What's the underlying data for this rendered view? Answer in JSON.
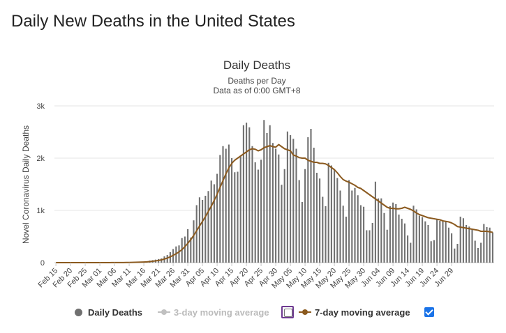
{
  "page": {
    "heading": "Daily New Deaths in the United States"
  },
  "chart_data": {
    "type": "bar",
    "title": "Daily Deaths",
    "subtitle_lines": [
      "Deaths per Day",
      "Data as of 0:00 GMT+8"
    ],
    "ylabel": "Novel Coronavirus Daily Deaths",
    "ylim": [
      0,
      3000
    ],
    "yticks": [
      0,
      1000,
      2000,
      3000
    ],
    "ytick_labels": [
      "0",
      "1k",
      "2k",
      "3k"
    ],
    "grid": true,
    "x_start": "2020-02-15",
    "x_tick_labels": [
      "Feb 15",
      "Feb 20",
      "Feb 25",
      "Mar 01",
      "Mar 06",
      "Mar 11",
      "Mar 16",
      "Mar 21",
      "Mar 26",
      "Mar 31",
      "Apr 05",
      "Apr 10",
      "Apr 15",
      "Apr 20",
      "Apr 25",
      "Apr 30",
      "May 05",
      "May 10",
      "May 15",
      "May 20",
      "May 25",
      "May 30",
      "Jun 04",
      "Jun 09",
      "Jun 14",
      "Jun 19",
      "Jun 24",
      "Jun 29"
    ],
    "series": [
      {
        "name": "Daily Deaths",
        "color": "#707070",
        "values": [
          0,
          0,
          0,
          0,
          0,
          0,
          0,
          0,
          0,
          0,
          0,
          0,
          0,
          0,
          0,
          0,
          0,
          1,
          0,
          2,
          2,
          3,
          4,
          2,
          5,
          8,
          11,
          10,
          12,
          16,
          18,
          23,
          40,
          48,
          58,
          69,
          80,
          120,
          146,
          200,
          260,
          310,
          330,
          470,
          500,
          640,
          480,
          810,
          1100,
          1250,
          1200,
          1280,
          1370,
          1570,
          1500,
          1700,
          2060,
          2230,
          2180,
          2260,
          2000,
          1730,
          1740,
          2030,
          2630,
          2680,
          2590,
          2230,
          1920,
          1780,
          1970,
          2730,
          2480,
          2630,
          2290,
          2180,
          2070,
          1490,
          1790,
          2510,
          2440,
          2370,
          2180,
          1580,
          1160,
          1790,
          2400,
          2560,
          2200,
          1720,
          1610,
          1260,
          1080,
          1910,
          1860,
          1790,
          1620,
          1380,
          1090,
          880,
          1580,
          1380,
          1430,
          1290,
          1100,
          1070,
          620,
          620,
          760,
          1550,
          1230,
          1230,
          950,
          630,
          1080,
          1150,
          1120,
          920,
          840,
          750,
          520,
          380,
          1090,
          1020,
          900,
          870,
          790,
          720,
          410,
          430,
          840,
          800,
          800,
          800,
          670,
          560,
          270,
          360,
          880,
          850,
          720,
          690,
          640,
          420,
          280,
          380,
          740,
          680,
          670,
          580
        ]
      },
      {
        "name": "3-day moving average",
        "color": "#c0c0c0",
        "visible": false
      },
      {
        "name": "7-day moving average",
        "color": "#8b5a1f",
        "visible": true,
        "values": [
          0,
          0,
          0,
          0,
          0,
          0,
          0,
          0,
          0,
          0,
          0,
          0,
          0,
          0,
          0,
          0,
          0,
          0,
          0,
          1,
          1,
          1,
          2,
          2,
          3,
          4,
          5,
          6,
          8,
          10,
          12,
          15,
          20,
          26,
          33,
          42,
          53,
          68,
          87,
          111,
          140,
          170,
          205,
          250,
          305,
          370,
          440,
          520,
          610,
          700,
          790,
          880,
          980,
          1080,
          1190,
          1310,
          1440,
          1570,
          1700,
          1810,
          1900,
          1960,
          2000,
          2040,
          2080,
          2120,
          2160,
          2180,
          2170,
          2140,
          2160,
          2200,
          2220,
          2240,
          2220,
          2210,
          2260,
          2220,
          2180,
          2160,
          2140,
          2060,
          2040,
          2010,
          2000,
          2000,
          1960,
          1940,
          1920,
          1920,
          1900,
          1900,
          1890,
          1860,
          1820,
          1780,
          1720,
          1650,
          1590,
          1560,
          1540,
          1510,
          1480,
          1440,
          1420,
          1380,
          1340,
          1300,
          1260,
          1220,
          1180,
          1140,
          1100,
          1060,
          1040,
          1040,
          1030,
          1030,
          1040,
          1060,
          1040,
          1020,
          990,
          950,
          920,
          900,
          880,
          860,
          850,
          840,
          830,
          820,
          800,
          790,
          780,
          760,
          730,
          690,
          680,
          670,
          660,
          650,
          640,
          630,
          620,
          600,
          600,
          600,
          590,
          580
        ]
      }
    ],
    "legend_position": "bottom"
  },
  "legend": {
    "items": [
      {
        "label": "Daily Deaths"
      },
      {
        "label": "3-day moving average"
      },
      {
        "label": "7-day moving average"
      }
    ]
  }
}
